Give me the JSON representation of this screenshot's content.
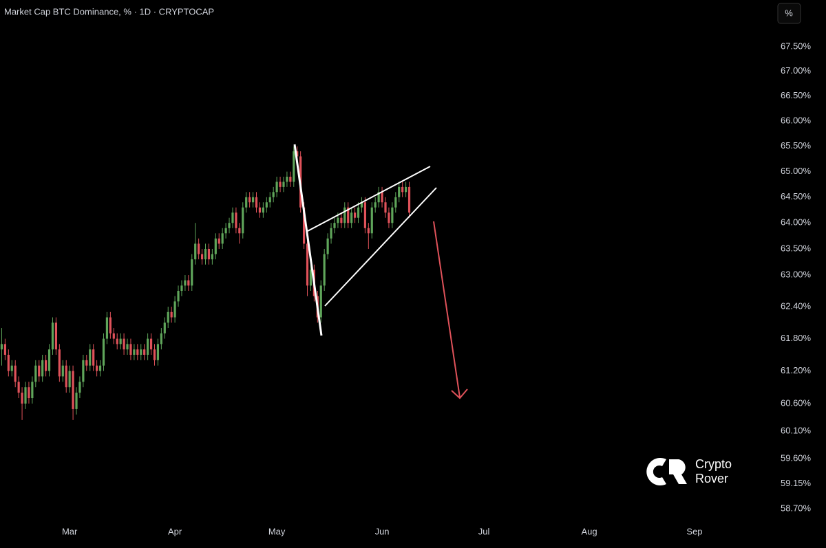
{
  "chart_data": {
    "type": "candlestick",
    "title": "Market Cap BTC Dominance, % · 1D · CRYPTOCAP",
    "scale_button": "%",
    "watermark": [
      "Crypto",
      "Rover"
    ],
    "log_y": true,
    "up_color": "#5fa55a",
    "down_color": "#e0525a",
    "ylim": [
      58.46,
      68.46
    ],
    "yticks": [
      {
        "value": 67.5,
        "label": "67.50%"
      },
      {
        "value": 67.0,
        "label": "67.00%"
      },
      {
        "value": 66.5,
        "label": "66.50%"
      },
      {
        "value": 66.0,
        "label": "66.00%"
      },
      {
        "value": 65.5,
        "label": "65.50%"
      },
      {
        "value": 65.0,
        "label": "65.00%"
      },
      {
        "value": 64.5,
        "label": "64.50%"
      },
      {
        "value": 64.0,
        "label": "64.00%"
      },
      {
        "value": 63.5,
        "label": "63.50%"
      },
      {
        "value": 63.0,
        "label": "63.00%"
      },
      {
        "value": 62.4,
        "label": "62.40%"
      },
      {
        "value": 61.8,
        "label": "61.80%"
      },
      {
        "value": 61.2,
        "label": "61.20%"
      },
      {
        "value": 60.6,
        "label": "60.60%"
      },
      {
        "value": 60.1,
        "label": "60.10%"
      },
      {
        "value": 59.6,
        "label": "59.60%"
      },
      {
        "value": 59.15,
        "label": "59.15%"
      },
      {
        "value": 58.7,
        "label": "58.70%"
      }
    ],
    "categories": [
      null,
      null,
      null,
      null,
      null,
      null,
      null,
      null,
      null,
      null,
      null,
      null,
      null,
      null,
      null,
      null,
      null,
      null,
      null,
      null,
      "Mar",
      null,
      null,
      null,
      null,
      null,
      null,
      null,
      null,
      null,
      null,
      null,
      null,
      null,
      null,
      null,
      null,
      null,
      null,
      null,
      null,
      null,
      null,
      null,
      null,
      null,
      null,
      null,
      null,
      null,
      null,
      "Apr",
      null,
      null,
      null,
      null,
      null,
      null,
      null,
      null,
      null,
      null,
      null,
      null,
      null,
      null,
      null,
      null,
      null,
      null,
      null,
      null,
      null,
      null,
      null,
      null,
      null,
      null,
      null,
      null,
      null,
      "May",
      null,
      null,
      null,
      null,
      null,
      null,
      null,
      null,
      null,
      null,
      null,
      null,
      null,
      null,
      null,
      null,
      null,
      null,
      null,
      null,
      null,
      null,
      null,
      null,
      null,
      null,
      null,
      null,
      null,
      null,
      "Jun",
      null,
      null,
      null,
      null,
      null,
      null,
      null,
      null,
      null,
      null,
      null,
      null,
      null,
      null,
      null,
      null,
      null,
      null,
      null,
      null,
      null,
      null,
      null,
      null,
      null,
      null,
      null,
      null,
      null,
      "Jul",
      null,
      null,
      null,
      null,
      null,
      null,
      null,
      null,
      null,
      null,
      null,
      null,
      null,
      null,
      null,
      null,
      null,
      null,
      null,
      null,
      null,
      null,
      null,
      null,
      null,
      null,
      null,
      null,
      null,
      null,
      "Aug",
      null,
      null,
      null,
      null,
      null,
      null,
      null,
      null,
      null,
      null,
      null,
      null,
      null,
      null,
      null,
      null,
      null,
      null,
      null,
      null,
      null,
      null,
      null,
      null,
      null,
      null,
      null,
      null,
      null,
      null,
      "Sep",
      null,
      null,
      null,
      null,
      null,
      null,
      null,
      null,
      null,
      null,
      null,
      null,
      null,
      null,
      null,
      null,
      null,
      null,
      null,
      null,
      null,
      null
    ],
    "open": [
      61.6,
      61.7,
      61.5,
      61.2,
      61.3,
      61.0,
      60.8,
      60.6,
      60.9,
      60.7,
      61.0,
      61.3,
      61.1,
      61.4,
      61.2,
      61.6,
      62.1,
      61.6,
      61.1,
      61.3,
      60.9,
      61.2,
      60.5,
      60.8,
      61.0,
      61.4,
      61.3,
      61.6,
      61.3,
      61.2,
      61.3,
      61.8,
      62.2,
      61.9,
      61.8,
      61.7,
      61.8,
      61.6,
      61.7,
      61.5,
      61.6,
      61.5,
      61.6,
      61.5,
      61.8,
      61.6,
      61.4,
      61.7,
      61.9,
      62.1,
      62.3,
      62.2,
      62.5,
      62.7,
      62.8,
      62.9,
      62.8,
      63.3,
      63.6,
      63.4,
      63.3,
      63.5,
      63.3,
      63.4,
      63.7,
      63.6,
      63.8,
      63.9,
      64.0,
      64.2,
      63.9,
      63.8,
      64.3,
      64.5,
      64.4,
      64.5,
      64.3,
      64.2,
      64.3,
      64.4,
      64.5,
      64.6,
      64.8,
      64.7,
      64.8,
      64.9,
      64.8,
      65.4,
      65.3,
      64.3,
      63.6,
      62.8,
      63.1,
      62.6,
      62.2,
      62.8,
      63.4,
      63.7,
      63.9,
      64.0,
      64.1,
      64.0,
      64.3,
      64.0,
      64.2,
      64.1,
      64.3,
      64.4,
      63.9,
      63.8,
      64.3,
      64.4,
      64.6,
      64.4,
      64.2,
      64.0,
      64.3,
      64.5,
      64.7,
      64.6,
      64.7,
      null,
      null,
      null,
      null,
      null,
      null,
      null,
      null,
      null,
      null,
      null,
      null,
      null,
      null,
      null,
      null,
      null,
      null,
      null,
      null,
      null,
      null,
      null,
      null,
      null,
      null,
      null,
      null,
      null,
      null,
      null,
      null,
      null,
      null,
      null,
      null,
      null,
      null,
      null,
      null,
      null,
      null,
      null,
      null,
      null,
      null,
      null,
      null,
      null,
      null,
      null,
      null,
      null,
      null,
      null,
      null,
      null,
      null,
      null,
      null,
      null,
      null,
      null,
      null,
      null,
      null,
      null,
      null,
      null,
      null,
      null,
      null,
      null,
      null,
      null,
      null,
      null,
      null,
      null,
      null,
      null,
      null,
      null,
      null,
      null,
      null,
      null,
      null,
      null,
      null,
      null,
      null,
      null,
      null,
      null,
      null,
      null,
      null,
      null,
      null,
      null,
      null,
      null,
      null,
      null,
      null
    ],
    "high": [
      62.0,
      61.8,
      61.6,
      61.4,
      61.4,
      61.1,
      60.9,
      61.0,
      61.0,
      61.1,
      61.4,
      61.4,
      61.5,
      61.5,
      61.7,
      62.2,
      62.2,
      61.7,
      61.4,
      61.4,
      61.3,
      61.3,
      60.9,
      61.1,
      61.5,
      61.5,
      61.7,
      61.7,
      61.4,
      61.4,
      61.9,
      62.3,
      62.3,
      62.0,
      61.9,
      61.9,
      61.9,
      61.8,
      61.8,
      61.7,
      61.7,
      61.7,
      61.7,
      61.9,
      61.9,
      61.7,
      61.8,
      62.0,
      62.2,
      62.4,
      62.4,
      62.6,
      62.8,
      62.9,
      63.0,
      63.0,
      63.4,
      64.0,
      63.7,
      63.5,
      63.6,
      63.6,
      63.5,
      63.8,
      63.8,
      63.9,
      64.0,
      64.1,
      64.3,
      64.3,
      64.0,
      64.4,
      64.6,
      64.6,
      64.6,
      64.6,
      64.4,
      64.4,
      64.5,
      64.6,
      64.7,
      64.9,
      64.9,
      64.9,
      65.0,
      65.0,
      65.5,
      65.5,
      65.4,
      64.4,
      63.7,
      63.2,
      63.2,
      62.7,
      62.9,
      63.5,
      63.8,
      64.0,
      64.1,
      64.2,
      64.2,
      64.4,
      64.4,
      64.3,
      64.3,
      64.4,
      64.5,
      64.5,
      64.0,
      64.4,
      64.5,
      64.7,
      64.7,
      64.5,
      64.3,
      64.4,
      64.6,
      64.8,
      64.8,
      64.8,
      64.8,
      null,
      null,
      null,
      null,
      null,
      null,
      null,
      null,
      null,
      null,
      null,
      null,
      null,
      null,
      null,
      null,
      null,
      null,
      null,
      null,
      null,
      null,
      null,
      null,
      null,
      null,
      null,
      null,
      null,
      null,
      null,
      null,
      null,
      null,
      null,
      null,
      null,
      null,
      null,
      null,
      null,
      null,
      null,
      null,
      null,
      null,
      null,
      null,
      null,
      null,
      null,
      null,
      null,
      null,
      null,
      null,
      null,
      null,
      null,
      null,
      null,
      null,
      null,
      null,
      null,
      null,
      null,
      null,
      null,
      null,
      null,
      null,
      null,
      null,
      null,
      null,
      null,
      null,
      null,
      null,
      null,
      null,
      null,
      null,
      null,
      null,
      null,
      null,
      null,
      null,
      null,
      null,
      null,
      null,
      null,
      null,
      null,
      null,
      null,
      null,
      null,
      null,
      null,
      null,
      null,
      null
    ],
    "low": [
      61.3,
      61.4,
      61.1,
      61.1,
      60.9,
      60.7,
      60.3,
      60.5,
      60.6,
      60.6,
      60.9,
      61.0,
      61.0,
      61.1,
      61.1,
      61.5,
      61.5,
      61.0,
      61.0,
      60.8,
      60.8,
      60.3,
      60.4,
      60.7,
      60.9,
      61.2,
      61.2,
      61.2,
      61.1,
      61.1,
      61.2,
      61.7,
      61.8,
      61.7,
      61.6,
      61.6,
      61.5,
      61.5,
      61.4,
      61.4,
      61.4,
      61.4,
      61.4,
      61.4,
      61.5,
      61.3,
      61.3,
      61.6,
      61.8,
      62.0,
      62.1,
      62.1,
      62.4,
      62.6,
      62.7,
      62.7,
      62.7,
      63.2,
      63.3,
      63.2,
      63.2,
      63.2,
      63.2,
      63.3,
      63.5,
      63.5,
      63.7,
      63.8,
      63.9,
      63.8,
      63.6,
      63.7,
      64.2,
      64.3,
      64.3,
      64.2,
      64.1,
      64.1,
      64.2,
      64.3,
      64.4,
      64.5,
      64.6,
      64.6,
      64.7,
      64.7,
      64.7,
      65.2,
      64.2,
      63.5,
      62.6,
      62.7,
      62.5,
      62.1,
      62.1,
      62.7,
      63.3,
      63.6,
      63.8,
      63.9,
      63.9,
      63.9,
      63.9,
      63.9,
      64.0,
      64.0,
      64.2,
      63.8,
      63.5,
      63.7,
      64.2,
      64.3,
      64.3,
      64.1,
      63.9,
      63.9,
      64.2,
      64.4,
      64.5,
      64.5,
      64.1,
      null,
      null,
      null,
      null,
      null,
      null,
      null,
      null,
      null,
      null,
      null,
      null,
      null,
      null,
      null,
      null,
      null,
      null,
      null,
      null,
      null,
      null,
      null,
      null,
      null,
      null,
      null,
      null,
      null,
      null,
      null,
      null,
      null,
      null,
      null,
      null,
      null,
      null,
      null,
      null,
      null,
      null,
      null,
      null,
      null,
      null,
      null,
      null,
      null,
      null,
      null,
      null,
      null,
      null,
      null,
      null,
      null,
      null,
      null,
      null,
      null,
      null,
      null,
      null,
      null,
      null,
      null,
      null,
      null,
      null,
      null,
      null,
      null,
      null,
      null,
      null,
      null,
      null,
      null,
      null,
      null,
      null,
      null,
      null,
      null,
      null,
      null,
      null,
      null,
      null,
      null,
      null,
      null,
      null,
      null,
      null,
      null,
      null,
      null,
      null,
      null,
      null,
      null,
      null,
      null,
      null
    ],
    "close": [
      61.7,
      61.5,
      61.2,
      61.3,
      61.0,
      60.8,
      60.6,
      60.9,
      60.7,
      61.0,
      61.3,
      61.1,
      61.4,
      61.2,
      61.6,
      62.1,
      61.6,
      61.1,
      61.3,
      60.9,
      61.2,
      60.5,
      60.8,
      61.0,
      61.4,
      61.3,
      61.6,
      61.3,
      61.2,
      61.3,
      61.8,
      62.2,
      61.9,
      61.8,
      61.7,
      61.8,
      61.6,
      61.7,
      61.5,
      61.6,
      61.5,
      61.6,
      61.5,
      61.8,
      61.6,
      61.4,
      61.7,
      61.9,
      62.1,
      62.3,
      62.2,
      62.5,
      62.7,
      62.8,
      62.9,
      62.8,
      63.3,
      63.6,
      63.4,
      63.3,
      63.5,
      63.3,
      63.4,
      63.7,
      63.6,
      63.8,
      63.9,
      64.0,
      64.2,
      63.9,
      63.8,
      64.3,
      64.5,
      64.4,
      64.5,
      64.3,
      64.2,
      64.3,
      64.4,
      64.5,
      64.6,
      64.8,
      64.7,
      64.8,
      64.9,
      64.8,
      65.4,
      65.3,
      64.3,
      63.6,
      62.8,
      63.1,
      62.6,
      62.2,
      62.8,
      63.4,
      63.7,
      63.9,
      64.0,
      64.1,
      64.0,
      64.3,
      64.0,
      64.2,
      64.1,
      64.3,
      64.4,
      63.9,
      63.8,
      64.3,
      64.4,
      64.6,
      64.4,
      64.2,
      64.0,
      64.3,
      64.5,
      64.7,
      64.6,
      64.7,
      64.2,
      null,
      null,
      null,
      null,
      null,
      null,
      null,
      null,
      null,
      null,
      null,
      null,
      null,
      null,
      null,
      null,
      null,
      null,
      null,
      null,
      null,
      null,
      null,
      null,
      null,
      null,
      null,
      null,
      null,
      null,
      null,
      null,
      null,
      null,
      null,
      null,
      null,
      null,
      null,
      null,
      null,
      null,
      null,
      null,
      null,
      null,
      null,
      null,
      null,
      null,
      null,
      null,
      null,
      null,
      null,
      null,
      null,
      null,
      null,
      null,
      null,
      null,
      null,
      null,
      null,
      null,
      null,
      null,
      null,
      null,
      null,
      null,
      null,
      null,
      null,
      null,
      null,
      null,
      null,
      null,
      null,
      null,
      null,
      null,
      null,
      null,
      null,
      null,
      null,
      null,
      null,
      null,
      null,
      null,
      null,
      null,
      null,
      null,
      null,
      null,
      null,
      null,
      null,
      null,
      null,
      null
    ]
  }
}
